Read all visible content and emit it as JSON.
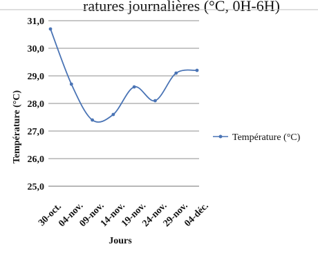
{
  "chart_data": {
    "type": "line",
    "title": "",
    "top_cropped_text": "ratures journalières (°C, 0H-6H)",
    "xlabel": "Jours",
    "ylabel": "Température (°C)",
    "categories": [
      "30-oct.",
      "04-nov.",
      "09-nov.",
      "14-nov.",
      "19-nov.",
      "24-nov.",
      "29-nov.",
      "04-déc."
    ],
    "ylim": [
      25.0,
      31.0
    ],
    "y_ticks": [
      "25,0",
      "26,0",
      "27,0",
      "28,0",
      "29,0",
      "30,0",
      "31,0"
    ],
    "grid": "horizontal",
    "legend_placement": "right",
    "series": [
      {
        "name": "Température (°C)",
        "color": "#4a74b5",
        "values": [
          30.7,
          28.7,
          27.4,
          27.6,
          28.6,
          28.1,
          29.1,
          29.2
        ]
      }
    ]
  }
}
